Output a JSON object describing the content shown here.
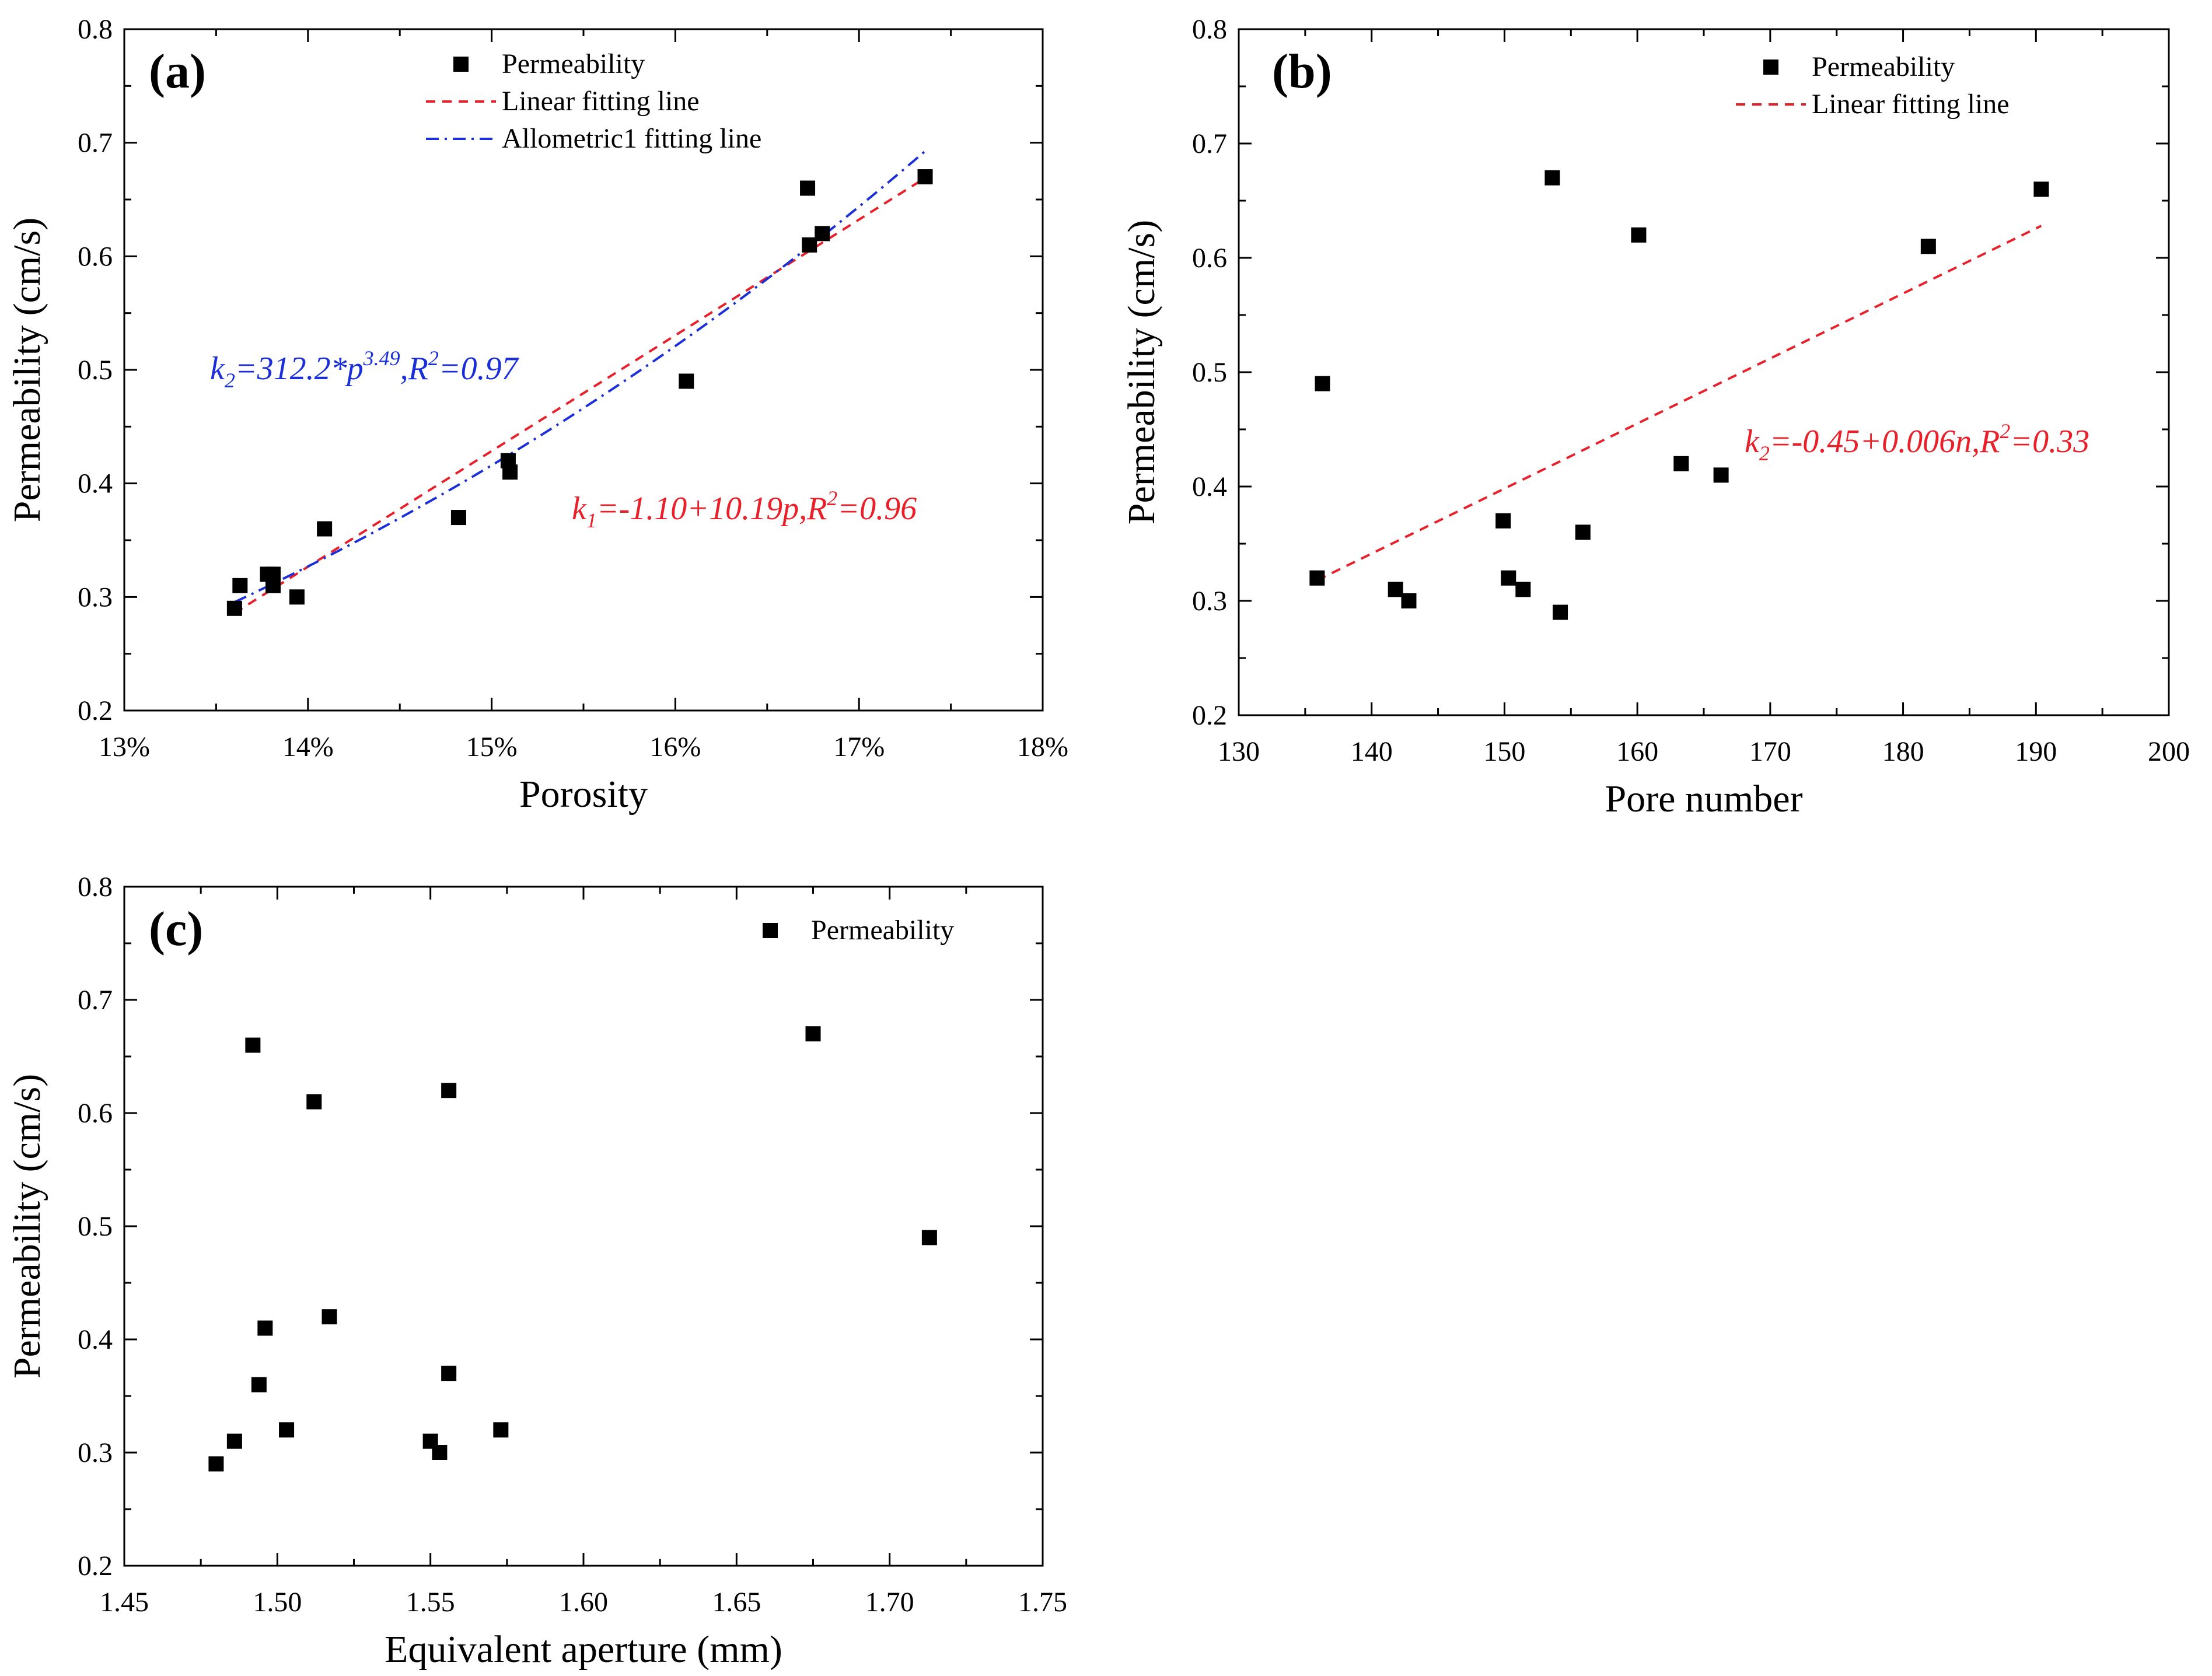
{
  "chart_data": [
    {
      "panel": "a",
      "type": "scatter",
      "label": "(a)",
      "xlabel": "Porosity",
      "ylabel": "Permeability (cm/s)",
      "xlim": [
        0.13,
        0.18
      ],
      "ylim": [
        0.2,
        0.8
      ],
      "xticks": [
        0.13,
        0.14,
        0.15,
        0.16,
        0.17,
        0.18
      ],
      "xtick_labels": [
        "13%",
        "14%",
        "15%",
        "16%",
        "17%",
        "18%"
      ],
      "yticks": [
        0.2,
        0.3,
        0.4,
        0.5,
        0.6,
        0.7,
        0.8
      ],
      "ytick_labels": [
        "0.2",
        "0.3",
        "0.4",
        "0.5",
        "0.6",
        "0.7",
        "0.8"
      ],
      "legend": [
        "Permeability",
        "Linear fitting line",
        "Allometric1 fitting line"
      ],
      "points": [
        [
          0.136,
          0.29
        ],
        [
          0.1363,
          0.31
        ],
        [
          0.1378,
          0.32
        ],
        [
          0.1381,
          0.32
        ],
        [
          0.1381,
          0.31
        ],
        [
          0.1394,
          0.3
        ],
        [
          0.1409,
          0.36
        ],
        [
          0.1482,
          0.37
        ],
        [
          0.1509,
          0.42
        ],
        [
          0.151,
          0.41
        ],
        [
          0.1606,
          0.49
        ],
        [
          0.1672,
          0.66
        ],
        [
          0.1673,
          0.61
        ],
        [
          0.168,
          0.62
        ],
        [
          0.1736,
          0.67
        ]
      ],
      "fits": [
        {
          "name": "Linear fitting line",
          "model": "linear",
          "a": -1.1,
          "b": 10.19,
          "x_range": [
            0.136,
            0.1736
          ],
          "color": "#e8202a"
        },
        {
          "name": "Allometric1 fitting line",
          "model": "power",
          "a": 312.2,
          "b": 3.49,
          "x_range": [
            0.136,
            0.1736
          ],
          "color": "#1a2fd8"
        }
      ],
      "annotations": [
        {
          "pre": "k",
          "sub": "2",
          "mid": "=312.2*p",
          "sup": "3.49",
          "mid2": ",R",
          "sup2": "2",
          "post": "=0.97",
          "color": "#1a2fd8"
        },
        {
          "pre": "k",
          "sub": "1",
          "mid": "=-1.10+10.19p,R",
          "sup": "2",
          "post": "=0.96",
          "color": "#e8202a"
        }
      ]
    },
    {
      "panel": "b",
      "type": "scatter",
      "label": "(b)",
      "xlabel": "Pore number",
      "ylabel": "Permeability (cm/s)",
      "xlim": [
        130,
        200
      ],
      "ylim": [
        0.2,
        0.8
      ],
      "xticks": [
        130,
        140,
        150,
        160,
        170,
        180,
        190,
        200
      ],
      "xtick_labels": [
        "130",
        "140",
        "150",
        "160",
        "170",
        "180",
        "190",
        "200"
      ],
      "yticks": [
        0.2,
        0.3,
        0.4,
        0.5,
        0.6,
        0.7,
        0.8
      ],
      "ytick_labels": [
        "0.2",
        "0.3",
        "0.4",
        "0.5",
        "0.6",
        "0.7",
        "0.8"
      ],
      "legend": [
        "Permeability",
        "Linear fitting line"
      ],
      "points": [
        [
          135.9,
          0.32
        ],
        [
          136.3,
          0.49
        ],
        [
          141.8,
          0.31
        ],
        [
          142.8,
          0.3
        ],
        [
          149.9,
          0.37
        ],
        [
          150.3,
          0.32
        ],
        [
          151.4,
          0.31
        ],
        [
          153.6,
          0.67
        ],
        [
          154.2,
          0.29
        ],
        [
          155.9,
          0.36
        ],
        [
          160.1,
          0.62
        ],
        [
          163.3,
          0.42
        ],
        [
          166.3,
          0.41
        ],
        [
          181.9,
          0.61
        ],
        [
          190.4,
          0.66
        ]
      ],
      "fits": [
        {
          "name": "Linear fitting line",
          "model": "line2pt",
          "p1": [
            135.9,
            0.318
          ],
          "p2": [
            190.4,
            0.628
          ],
          "color": "#e8202a"
        }
      ],
      "annotations": [
        {
          "pre": "k",
          "sub": "2",
          "mid": "=-0.45+0.006n,R",
          "sup": "2",
          "post": "=0.33",
          "color": "#e8202a"
        }
      ]
    },
    {
      "panel": "c",
      "type": "scatter",
      "label": "(c)",
      "xlabel": "Equivalent aperture (mm)",
      "ylabel": "Permeability (cm/s)",
      "xlim": [
        1.45,
        1.75
      ],
      "ylim": [
        0.2,
        0.8
      ],
      "xticks": [
        1.45,
        1.5,
        1.55,
        1.6,
        1.65,
        1.7,
        1.75
      ],
      "xtick_labels": [
        "1.45",
        "1.50",
        "1.55",
        "1.60",
        "1.65",
        "1.70",
        "1.75"
      ],
      "yticks": [
        0.2,
        0.3,
        0.4,
        0.5,
        0.6,
        0.7,
        0.8
      ],
      "ytick_labels": [
        "0.2",
        "0.3",
        "0.4",
        "0.5",
        "0.6",
        "0.7",
        "0.8"
      ],
      "legend": [
        "Permeability"
      ],
      "points": [
        [
          1.48,
          0.29
        ],
        [
          1.486,
          0.31
        ],
        [
          1.492,
          0.66
        ],
        [
          1.494,
          0.36
        ],
        [
          1.496,
          0.41
        ],
        [
          1.503,
          0.32
        ],
        [
          1.512,
          0.61
        ],
        [
          1.517,
          0.42
        ],
        [
          1.55,
          0.31
        ],
        [
          1.553,
          0.3
        ],
        [
          1.556,
          0.37
        ],
        [
          1.556,
          0.62
        ],
        [
          1.573,
          0.32
        ],
        [
          1.675,
          0.67
        ],
        [
          1.713,
          0.49
        ]
      ],
      "fits": [],
      "annotations": []
    }
  ]
}
